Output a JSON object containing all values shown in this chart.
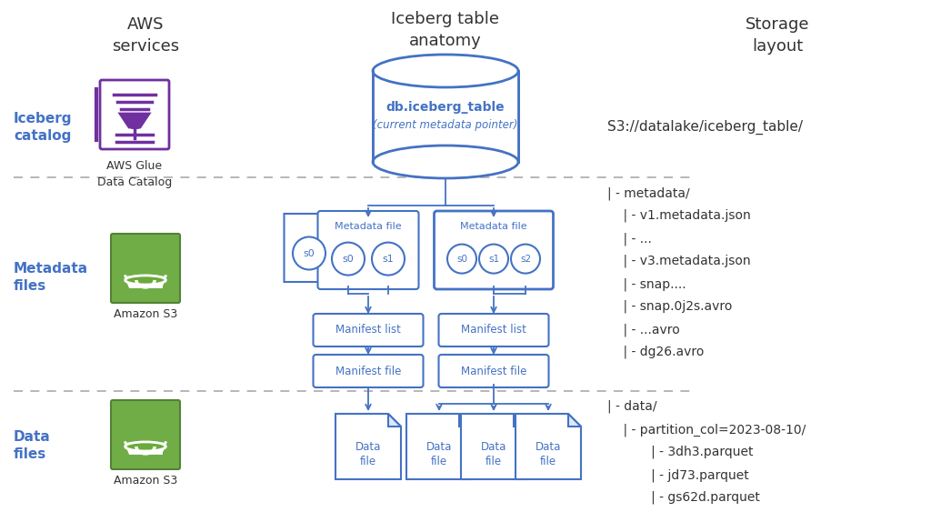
{
  "bg_color": "#ffffff",
  "blue": "#4472c4",
  "purple": "#7030a0",
  "green": "#70ad47",
  "green_dark": "#538135",
  "green_mid": "#6aaa3a",
  "gray_text": "#404040",
  "label_blue": "#4472c4",
  "dashed_color": "#aaaaaa",
  "col1_header": "AWS\nservices",
  "col2_header": "Iceberg table\nanatomy",
  "col3_header": "Storage\nlayout",
  "row1_label": "Iceberg\ncatalog",
  "row2_label": "Metadata\nfiles",
  "row3_label": "Data\nfiles",
  "catalog_text1": "db.iceberg_table",
  "catalog_text2": "(current metadata pointer)",
  "catalog_s3": "S3://datalake/iceberg_table/",
  "glue_label": "AWS Glue\nData Catalog",
  "s3_label": "Amazon S3",
  "storage_meta_line1": "| - metadata/",
  "storage_meta_lines": [
    "    | - v1.metadata.json",
    "    | - ...",
    "    | - v3.metadata.json",
    "    | - snap....",
    "    | - snap.0j2s.avro",
    "    | - ...avro",
    "    | - dg26.avro"
  ],
  "storage_data_line1": "| - data/",
  "storage_data_lines": [
    "    | - partition_col=2023-08-10/",
    "           | - 3dh3.parquet",
    "           | - jd73.parquet",
    "           | - gs62d.parquet"
  ]
}
